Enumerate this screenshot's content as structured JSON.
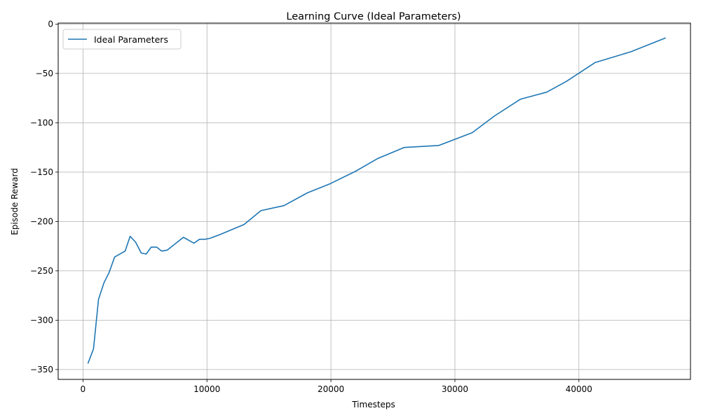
{
  "chart_data": {
    "type": "line",
    "title": "Learning Curve (Ideal Parameters)",
    "xlabel": "Timesteps",
    "ylabel": "Episode Reward",
    "xlim": [
      -2000,
      49000
    ],
    "ylim": [
      -360,
      1
    ],
    "xticks": [
      0,
      10000,
      20000,
      30000,
      40000
    ],
    "xtick_labels": [
      "0",
      "10000",
      "20000",
      "30000",
      "40000"
    ],
    "yticks": [
      0,
      -50,
      -100,
      -150,
      -200,
      -250,
      -300,
      -350
    ],
    "ytick_labels": [
      "0",
      "−50",
      "−100",
      "−150",
      "−200",
      "−250",
      "−300",
      "−350"
    ],
    "grid": true,
    "legend_position": "upper-left",
    "series": [
      {
        "name": "Ideal Parameters",
        "color": "#1f77b4",
        "x": [
          400,
          850,
          1250,
          1700,
          2100,
          2550,
          3400,
          3800,
          4250,
          4700,
          5100,
          5500,
          5950,
          6350,
          6800,
          8100,
          8950,
          9400,
          9850,
          10250,
          11100,
          13000,
          14350,
          16200,
          18100,
          19900,
          22000,
          23800,
          25900,
          28700,
          31400,
          33200,
          35300,
          37400,
          39000,
          41300,
          44200,
          47000
        ],
        "y": [
          -344,
          -329,
          -279,
          -262,
          -252,
          -236,
          -230,
          -215,
          -221,
          -232,
          -233,
          -226,
          -226,
          -230,
          -229,
          -216,
          -222,
          -218,
          -218,
          -217,
          -213,
          -203,
          -189,
          -184,
          -171,
          -162,
          -149,
          -136,
          -125,
          -123,
          -110,
          -93,
          -76,
          -69,
          -58,
          -39,
          -28,
          -14
        ]
      }
    ]
  }
}
